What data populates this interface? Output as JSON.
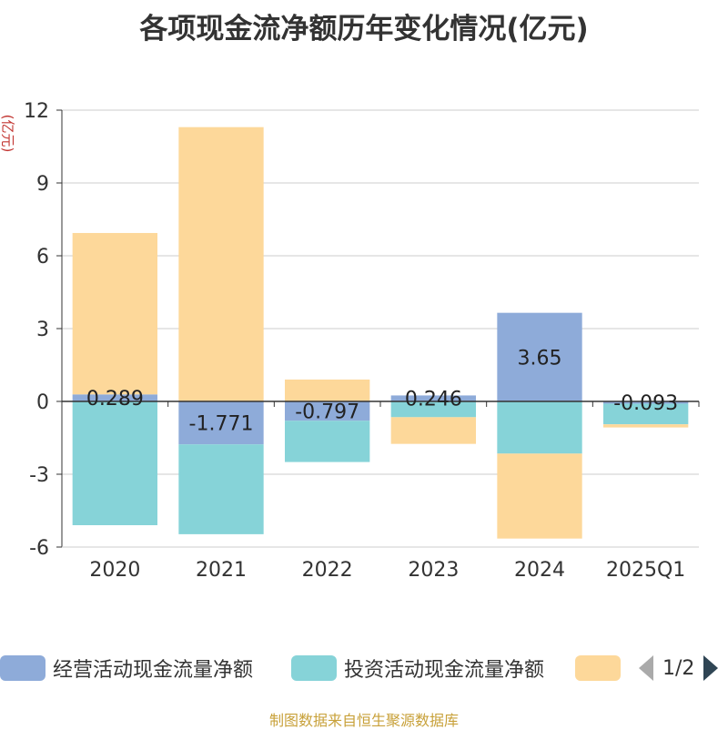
{
  "title": "各项现金流净额历年变化情况(亿元)",
  "unit_label": "(亿元)",
  "source": "制图数据来自恒生聚源数据库",
  "legend": {
    "items": [
      {
        "label": "经营活动现金流量净额",
        "color": "#8eabd9"
      },
      {
        "label": "投资活动现金流量净额",
        "color": "#86d3d8"
      },
      {
        "label": "",
        "color": "#fdd89a"
      }
    ],
    "page": "1/2"
  },
  "chart_data": {
    "type": "bar",
    "stacked": true,
    "categories": [
      "2020",
      "2021",
      "2022",
      "2023",
      "2024",
      "2025Q1"
    ],
    "ylim": [
      -6,
      12
    ],
    "yticks": [
      -6,
      -3,
      0,
      3,
      6,
      9,
      12
    ],
    "series": [
      {
        "name": "经营活动现金流量净额",
        "color": "#8eabd9",
        "values": [
          0.289,
          -1.771,
          -0.797,
          0.246,
          3.65,
          -0.093
        ],
        "labels": [
          "0.289",
          "-1.771",
          "-0.797",
          "0.246",
          "3.65",
          "-0.093"
        ]
      },
      {
        "name": "投资活动现金流量净额",
        "color": "#86d3d8",
        "values": [
          -5.1,
          -3.7,
          -1.7,
          -0.65,
          -2.15,
          -0.85
        ]
      },
      {
        "name": "",
        "color": "#fdd89a",
        "values": [
          6.65,
          11.3,
          0.9,
          -1.1,
          -3.5,
          -0.13
        ]
      }
    ]
  }
}
